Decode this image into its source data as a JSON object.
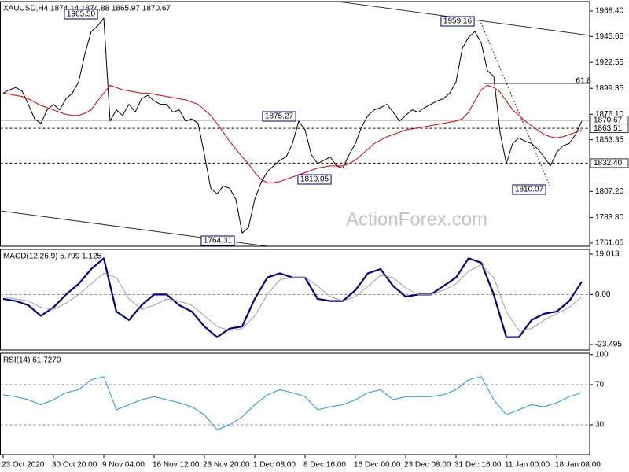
{
  "chart_data": [
    {
      "type": "line",
      "title": "XAUUSD,H4  1874.14 1874.88 1865.97 1870.67",
      "watermark": "ActionForex.com",
      "xlim": [
        0,
        92
      ],
      "ylim": [
        1758.2,
        1976.8
      ],
      "yticks": [
        {
          "value": 1968.4,
          "label": "1968.40"
        },
        1945.65,
        1922.55,
        1899.35,
        {
          "value": 1876.1,
          "label": "1876.10"
        },
        1853.35,
        1830.15,
        {
          "value": 1807.2,
          "label": "1807.20"
        },
        {
          "value": 1783.8,
          "label": "1783.80"
        },
        1761.05
      ],
      "series": [
        {
          "color": "#000000",
          "values": [
            1895,
            1898,
            1900,
            1897,
            1885,
            1872,
            1868,
            1880,
            1885,
            1880,
            1890,
            1895,
            1905,
            1930,
            1950,
            1955,
            1962,
            1870,
            1880,
            1875,
            1885,
            1878,
            1890,
            1893,
            1888,
            1885,
            1885,
            1878,
            1880,
            1870,
            1872,
            1868,
            1840,
            1810,
            1805,
            1812,
            1810,
            1800,
            1770,
            1775,
            1800,
            1815,
            1825,
            1830,
            1835,
            1838,
            1850,
            1870,
            1862,
            1840,
            1832,
            1835,
            1838,
            1830,
            1828,
            1840,
            1850,
            1865,
            1875,
            1880,
            1882,
            1885,
            1878,
            1870,
            1875,
            1880,
            1878,
            1882,
            1885,
            1888,
            1890,
            1895,
            1905,
            1935,
            1945,
            1950,
            1940,
            1915,
            1910,
            1860,
            1832,
            1850,
            1855,
            1852,
            1850,
            1845,
            1838,
            1830,
            1842,
            1848,
            1850,
            1858,
            1870
          ]
        },
        {
          "color": "#e00000",
          "values": [
            1895,
            1894,
            1893,
            1892,
            1890,
            1887,
            1884,
            1882,
            1880,
            1878,
            1876,
            1875,
            1875,
            1877,
            1880,
            1888,
            1895,
            1902,
            1900,
            1898,
            1897,
            1896,
            1895,
            1895,
            1894,
            1893,
            1892,
            1891,
            1890,
            1889,
            1887,
            1885,
            1880,
            1875,
            1868,
            1860,
            1852,
            1845,
            1838,
            1832,
            1824,
            1818,
            1815,
            1815,
            1816,
            1818,
            1820,
            1822,
            1824,
            1826,
            1828,
            1829,
            1830,
            1830,
            1830,
            1832,
            1835,
            1840,
            1845,
            1850,
            1853,
            1856,
            1858,
            1860,
            1862,
            1863,
            1864,
            1865,
            1866,
            1867,
            1868,
            1869,
            1870,
            1872,
            1878,
            1888,
            1898,
            1902,
            1900,
            1896,
            1888,
            1880,
            1875,
            1870,
            1866,
            1862,
            1858,
            1856,
            1855,
            1856,
            1858,
            1860,
            1862
          ]
        }
      ],
      "levels": [
        {
          "value": 1870.67,
          "label": "1870.67",
          "style": "solid"
        },
        {
          "value": 1863.51,
          "label": "1863.51",
          "style": "dashed"
        },
        {
          "value": 1832.4,
          "label": "1832.40",
          "style": "dashed"
        }
      ],
      "annotations": [
        "1965.50",
        "1959.16",
        "1875.27",
        "1819.05",
        "1764.31",
        "1810.07",
        "61.8"
      ]
    },
    {
      "type": "line",
      "title": "MACD(12,26,9) 5.799 1.125",
      "xlim": [
        0,
        46
      ],
      "ylim": [
        -26.08,
        21.23
      ],
      "yticks": [
        19.013,
        {
          "value": 0,
          "label": "0.00"
        },
        -23.495
      ],
      "levels": [
        0
      ],
      "series": [
        {
          "color": "#000080",
          "values": [
            -2,
            -3,
            -5,
            -10,
            -6,
            0,
            5,
            12,
            17,
            -8,
            -12,
            -5,
            0,
            0,
            -5,
            -8,
            -15,
            -20,
            -16,
            -15,
            -2,
            8,
            10,
            8,
            8,
            -2,
            -3,
            -3,
            2,
            10,
            12,
            4,
            -1,
            0,
            0,
            4,
            8,
            17,
            15,
            0,
            -20,
            -20,
            -12,
            -9,
            -8,
            -3,
            6
          ]
        },
        {
          "color": "#a0a0a0",
          "values": [
            -1,
            -2,
            -3,
            -6,
            -7,
            -4,
            0,
            5,
            10,
            8,
            -2,
            -7,
            -5,
            -2,
            -3,
            -5,
            -10,
            -15,
            -17,
            -16,
            -10,
            0,
            7,
            8,
            8,
            4,
            -1,
            -3,
            -1,
            4,
            9,
            8,
            3,
            0,
            0,
            2,
            5,
            11,
            14,
            8,
            -8,
            -17,
            -16,
            -12,
            -9,
            -6,
            -1
          ]
        }
      ]
    },
    {
      "type": "line",
      "title": "RSI(14) 61.7270",
      "xlim": [
        0,
        46
      ],
      "ylim": [
        0.2,
        101.4
      ],
      "yticks": [
        100,
        70,
        30
      ],
      "levels": [
        70,
        30
      ],
      "series": [
        {
          "color": "#1e90ff",
          "values": [
            60,
            58,
            55,
            50,
            55,
            62,
            65,
            75,
            78,
            45,
            50,
            55,
            58,
            55,
            52,
            48,
            40,
            25,
            30,
            38,
            50,
            60,
            65,
            62,
            58,
            45,
            48,
            50,
            55,
            62,
            65,
            55,
            58,
            58,
            58,
            60,
            65,
            75,
            78,
            55,
            40,
            45,
            50,
            48,
            52,
            58,
            62
          ]
        }
      ],
      "xticks": [
        {
          "value": 0,
          "label": "23 Oct 2020"
        },
        {
          "value": 4,
          "label": "30 Oct 20:00"
        },
        {
          "value": 8,
          "label": "9 Nov 04:00"
        },
        {
          "value": 12,
          "label": "16 Nov 12:00"
        },
        {
          "value": 16,
          "label": "23 Nov 20:00"
        },
        {
          "value": 20,
          "label": "1 Dec 08:00"
        },
        {
          "value": 24,
          "label": "8 Dec 16:00"
        },
        {
          "value": 28,
          "label": "16 Dec 00:00"
        },
        {
          "value": 32,
          "label": "23 Dec 08:00"
        },
        {
          "value": 36,
          "label": "31 Dec 16:00"
        },
        {
          "value": 40,
          "label": "11 Jan 00:00"
        },
        {
          "value": 44,
          "label": "18 Jan 08:00"
        }
      ]
    }
  ]
}
